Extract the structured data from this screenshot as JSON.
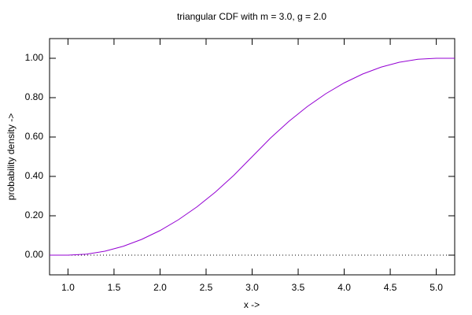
{
  "chart_data": {
    "type": "line",
    "title": "triangular CDF with m = 3.0, g = 2.0",
    "x_label": "x ->",
    "y_label": "probability density ->",
    "x": [
      0.8,
      1.0,
      1.2,
      1.4,
      1.6,
      1.8,
      2.0,
      2.2,
      2.4,
      2.6,
      2.8,
      3.0,
      3.2,
      3.4,
      3.6,
      3.8,
      4.0,
      4.2,
      4.4,
      4.6,
      4.8,
      5.0,
      5.2
    ],
    "series": [
      {
        "color": "#9400d3",
        "values": [
          0,
          0,
          0.005,
          0.02,
          0.045,
          0.08,
          0.125,
          0.18,
          0.245,
          0.32,
          0.405,
          0.5,
          0.595,
          0.68,
          0.755,
          0.82,
          0.875,
          0.92,
          0.955,
          0.98,
          0.995,
          1,
          1
        ]
      }
    ],
    "xlim": [
      0.8,
      5.2
    ],
    "ylim": [
      -0.1,
      1.1
    ],
    "xticks": [
      {
        "value": 1,
        "label": "1.0"
      },
      1.5,
      {
        "value": 2,
        "label": "2.0"
      },
      2.5,
      {
        "value": 3,
        "label": "3.0"
      },
      3.5,
      {
        "value": 4,
        "label": "4.0"
      },
      4.5,
      {
        "value": 5,
        "label": "5.0"
      }
    ],
    "yticks": [
      {
        "value": 0,
        "label": "0.00"
      },
      {
        "value": 0.2,
        "label": "0.20"
      },
      {
        "value": 0.4,
        "label": "0.40"
      },
      {
        "value": 0.6,
        "label": "0.60"
      },
      {
        "value": 0.8,
        "label": "0.80"
      },
      {
        "value": 1,
        "label": "1.00"
      }
    ],
    "grid": false
  }
}
